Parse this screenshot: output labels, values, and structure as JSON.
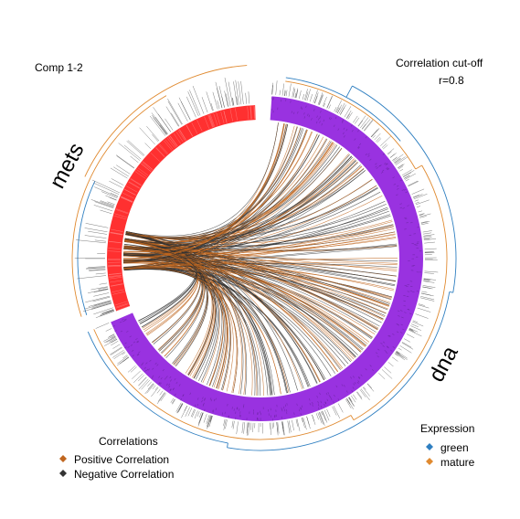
{
  "chart_data": {
    "type": "circos",
    "title": "Comp 1-2",
    "cutoff_title": "Correlation cut-off",
    "cutoff_value": "r=0.8",
    "blocks": [
      {
        "name": "mets",
        "color": "#ff3030"
      },
      {
        "name": "dna",
        "color": "#9932e0"
      }
    ],
    "correlations_legend": {
      "title": "Correlations",
      "items": [
        {
          "label": "Positive Correlation",
          "color": "#c0661f"
        },
        {
          "label": "Negative Correlation",
          "color": "#333333"
        }
      ]
    },
    "expression_legend": {
      "title": "Expression",
      "items": [
        {
          "label": "green",
          "color": "#2f7fc1"
        },
        {
          "label": "mature",
          "color": "#e08a30"
        }
      ]
    }
  }
}
